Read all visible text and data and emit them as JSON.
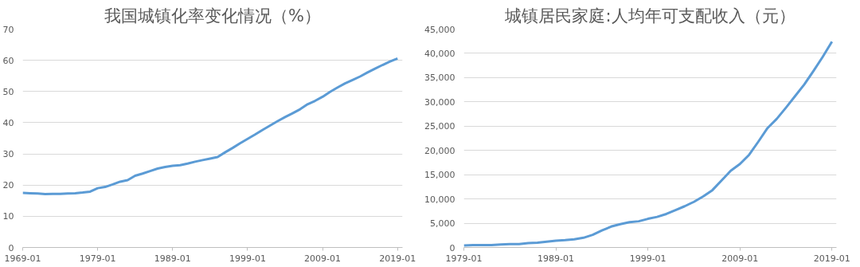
{
  "chart_data": [
    {
      "type": "line",
      "title": "我国城镇化率变化情况（%）",
      "x": [
        "1969-01",
        "1970-01",
        "1971-01",
        "1972-01",
        "1973-01",
        "1974-01",
        "1975-01",
        "1976-01",
        "1977-01",
        "1978-01",
        "1979-01",
        "1980-01",
        "1981-01",
        "1982-01",
        "1983-01",
        "1984-01",
        "1985-01",
        "1986-01",
        "1987-01",
        "1988-01",
        "1989-01",
        "1990-01",
        "1991-01",
        "1992-01",
        "1993-01",
        "1994-01",
        "1995-01",
        "1996-01",
        "1997-01",
        "1998-01",
        "1999-01",
        "2000-01",
        "2001-01",
        "2002-01",
        "2003-01",
        "2004-01",
        "2005-01",
        "2006-01",
        "2007-01",
        "2008-01",
        "2009-01",
        "2010-01",
        "2011-01",
        "2012-01",
        "2013-01",
        "2014-01",
        "2015-01",
        "2016-01",
        "2017-01",
        "2018-01",
        "2019-01"
      ],
      "series": [
        {
          "color": "#5b9bd5",
          "values": [
            17.5,
            17.4,
            17.3,
            17.1,
            17.2,
            17.2,
            17.3,
            17.4,
            17.6,
            17.9,
            19.0,
            19.4,
            20.2,
            21.1,
            21.6,
            23.0,
            23.7,
            24.5,
            25.3,
            25.8,
            26.2,
            26.4,
            26.9,
            27.5,
            28.0,
            28.5,
            29.0,
            30.5,
            31.9,
            33.4,
            34.8,
            36.2,
            37.7,
            39.1,
            40.5,
            41.8,
            43.0,
            44.3,
            45.9,
            47.0,
            48.3,
            49.9,
            51.3,
            52.6,
            53.7,
            54.8,
            56.1,
            57.3,
            58.5,
            59.6,
            60.6
          ]
        }
      ],
      "xlim": [
        "1969-01",
        "2019-09"
      ],
      "xticks": [
        "1969-01",
        "1979-01",
        "1989-01",
        "1999-01",
        "2009-01",
        "2019-01"
      ],
      "ylim": [
        0,
        70
      ],
      "yticks": [
        0,
        10,
        20,
        30,
        40,
        50,
        60,
        70
      ],
      "grid": "y",
      "marker": "none",
      "line_style": "solid"
    },
    {
      "type": "line",
      "title": "城镇居民家庭:人均年可支配收入（元）",
      "x": [
        "1979-01",
        "1980-01",
        "1981-01",
        "1982-01",
        "1983-01",
        "1984-01",
        "1985-01",
        "1986-01",
        "1987-01",
        "1988-01",
        "1989-01",
        "1990-01",
        "1991-01",
        "1992-01",
        "1993-01",
        "1994-01",
        "1995-01",
        "1996-01",
        "1997-01",
        "1998-01",
        "1999-01",
        "2000-01",
        "2001-01",
        "2002-01",
        "2003-01",
        "2004-01",
        "2005-01",
        "2006-01",
        "2007-01",
        "2008-01",
        "2009-01",
        "2010-01",
        "2011-01",
        "2012-01",
        "2013-01",
        "2014-01",
        "2015-01",
        "2016-01",
        "2017-01",
        "2018-01",
        "2019-01"
      ],
      "series": [
        {
          "color": "#5b9bd5",
          "values": [
            400,
            500,
            500,
            500,
            600,
            700,
            700,
            900,
            1000,
            1200,
            1400,
            1500,
            1700,
            2000,
            2600,
            3500,
            4300,
            4800,
            5200,
            5400,
            5900,
            6300,
            6900,
            7700,
            8500,
            9400,
            10500,
            11800,
            13800,
            15800,
            17200,
            19100,
            21800,
            24600,
            26500,
            28800,
            31200,
            33600,
            36400,
            39300,
            42400
          ]
        }
      ],
      "xlim": [
        "1979-01",
        "2019-07"
      ],
      "xticks": [
        "1979-01",
        "1989-01",
        "1999-01",
        "2009-01",
        "2019-01"
      ],
      "ylim": [
        0,
        45000
      ],
      "yticks": [
        {
          "value": 0,
          "label": "0"
        },
        {
          "value": 5000,
          "label": "5,000"
        },
        {
          "value": 10000,
          "label": "10,000"
        },
        {
          "value": 15000,
          "label": "15,000"
        },
        {
          "value": 20000,
          "label": "20,000"
        },
        {
          "value": 25000,
          "label": "25,000"
        },
        {
          "value": 30000,
          "label": "30,000"
        },
        {
          "value": 35000,
          "label": "35,000"
        },
        {
          "value": 40000,
          "label": "40,000"
        },
        {
          "value": 45000,
          "label": "45,000"
        }
      ],
      "grid": "y",
      "marker": "none",
      "line_style": "solid"
    }
  ]
}
